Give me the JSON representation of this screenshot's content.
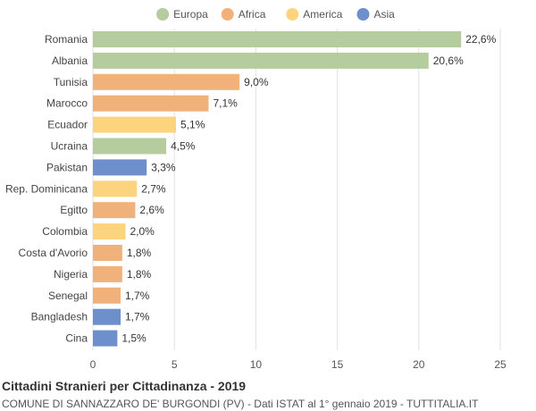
{
  "chart_data": {
    "type": "bar",
    "orientation": "horizontal",
    "categories": [
      "Romania",
      "Albania",
      "Tunisia",
      "Marocco",
      "Ecuador",
      "Ucraina",
      "Pakistan",
      "Rep. Dominicana",
      "Egitto",
      "Colombia",
      "Costa d'Avorio",
      "Nigeria",
      "Senegal",
      "Bangladesh",
      "Cina"
    ],
    "values": [
      22.6,
      20.6,
      9.0,
      7.1,
      5.1,
      4.5,
      3.3,
      2.7,
      2.6,
      2.0,
      1.8,
      1.8,
      1.7,
      1.7,
      1.5
    ],
    "value_labels": [
      "22,6%",
      "20,6%",
      "9,0%",
      "7,1%",
      "5,1%",
      "4,5%",
      "3,3%",
      "2,7%",
      "2,6%",
      "2,0%",
      "1,8%",
      "1,8%",
      "1,7%",
      "1,7%",
      "1,5%"
    ],
    "groups": [
      "Europa",
      "Europa",
      "Africa",
      "Africa",
      "America",
      "Europa",
      "Asia",
      "America",
      "Africa",
      "America",
      "Africa",
      "Africa",
      "Africa",
      "Asia",
      "Asia"
    ],
    "legend": [
      {
        "name": "Europa",
        "color": "#b5cc9e"
      },
      {
        "name": "Africa",
        "color": "#f0b27a"
      },
      {
        "name": "America",
        "color": "#fdd47e"
      },
      {
        "name": "Asia",
        "color": "#6d8fcc"
      }
    ],
    "legend_position": "top-center",
    "xlim": [
      0,
      25
    ],
    "xticks": [
      0,
      5,
      10,
      15,
      20,
      25
    ],
    "grid": true,
    "title": "Cittadini Stranieri per Cittadinanza - 2019",
    "subtitle": "COMUNE DI SANNAZZARO DE' BURGONDI (PV) - Dati ISTAT al 1° gennaio 2019 - TUTTITALIA.IT"
  }
}
